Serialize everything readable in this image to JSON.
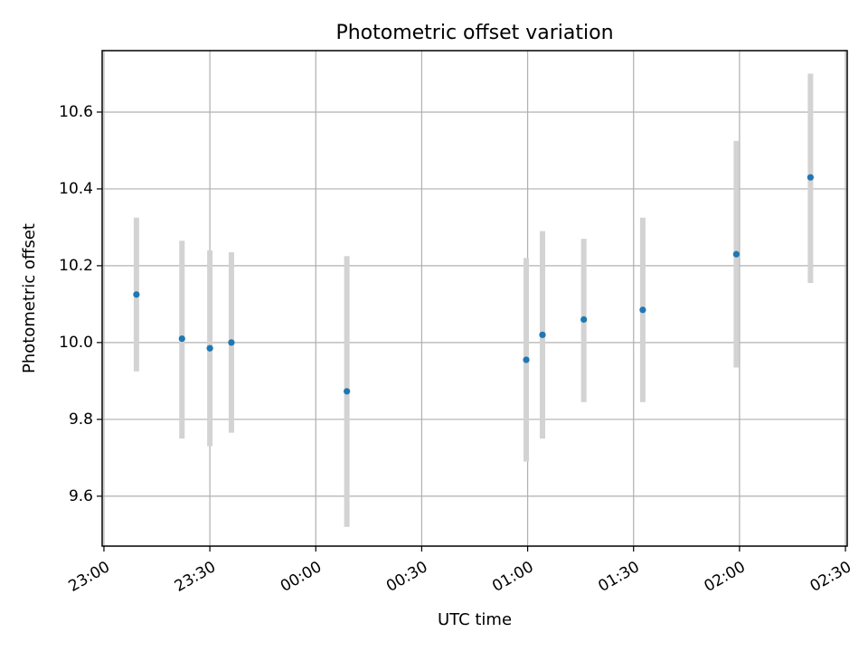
{
  "chart_data": {
    "type": "scatter",
    "title": "Photometric offset variation",
    "xlabel": "UTC time",
    "ylabel": "Photometric offset",
    "grid": true,
    "x_unit": "minutes past 23:00 UTC",
    "xlim": [
      -0.5,
      210.5
    ],
    "ylim": [
      9.47,
      10.76
    ],
    "xticks": [
      {
        "value": 0,
        "label": "23:00"
      },
      {
        "value": 30,
        "label": "23:30"
      },
      {
        "value": 60,
        "label": "00:00"
      },
      {
        "value": 90,
        "label": "00:30"
      },
      {
        "value": 120,
        "label": "01:00"
      },
      {
        "value": 150,
        "label": "01:30"
      },
      {
        "value": 180,
        "label": "02:00"
      },
      {
        "value": 210,
        "label": "02:30"
      }
    ],
    "yticks": [
      {
        "value": 9.6,
        "label": "9.6"
      },
      {
        "value": 9.8,
        "label": "9.8"
      },
      {
        "value": 10.0,
        "label": "10.0"
      },
      {
        "value": 10.2,
        "label": "10.2"
      },
      {
        "value": 10.4,
        "label": "10.4"
      },
      {
        "value": 10.6,
        "label": "10.6"
      }
    ],
    "series": [
      {
        "marker_color": "#1f77b4",
        "errorbar_color": "#d3d3d3",
        "points": [
          {
            "x": 9.2,
            "y": 10.125,
            "ymin": 9.925,
            "ymax": 10.325
          },
          {
            "x": 22.1,
            "y": 10.01,
            "ymin": 9.75,
            "ymax": 10.265
          },
          {
            "x": 30.0,
            "y": 9.985,
            "ymin": 9.73,
            "ymax": 10.24
          },
          {
            "x": 36.1,
            "y": 10.0,
            "ymin": 9.765,
            "ymax": 10.235
          },
          {
            "x": 68.8,
            "y": 9.873,
            "ymin": 9.52,
            "ymax": 10.225
          },
          {
            "x": 119.6,
            "y": 9.955,
            "ymin": 9.69,
            "ymax": 10.22
          },
          {
            "x": 124.2,
            "y": 10.02,
            "ymin": 9.75,
            "ymax": 10.29
          },
          {
            "x": 135.9,
            "y": 10.06,
            "ymin": 9.845,
            "ymax": 10.27
          },
          {
            "x": 152.6,
            "y": 10.085,
            "ymin": 9.845,
            "ymax": 10.325
          },
          {
            "x": 179.1,
            "y": 10.23,
            "ymin": 9.935,
            "ymax": 10.525
          },
          {
            "x": 200.1,
            "y": 10.43,
            "ymin": 10.155,
            "ymax": 10.7
          }
        ]
      }
    ]
  }
}
